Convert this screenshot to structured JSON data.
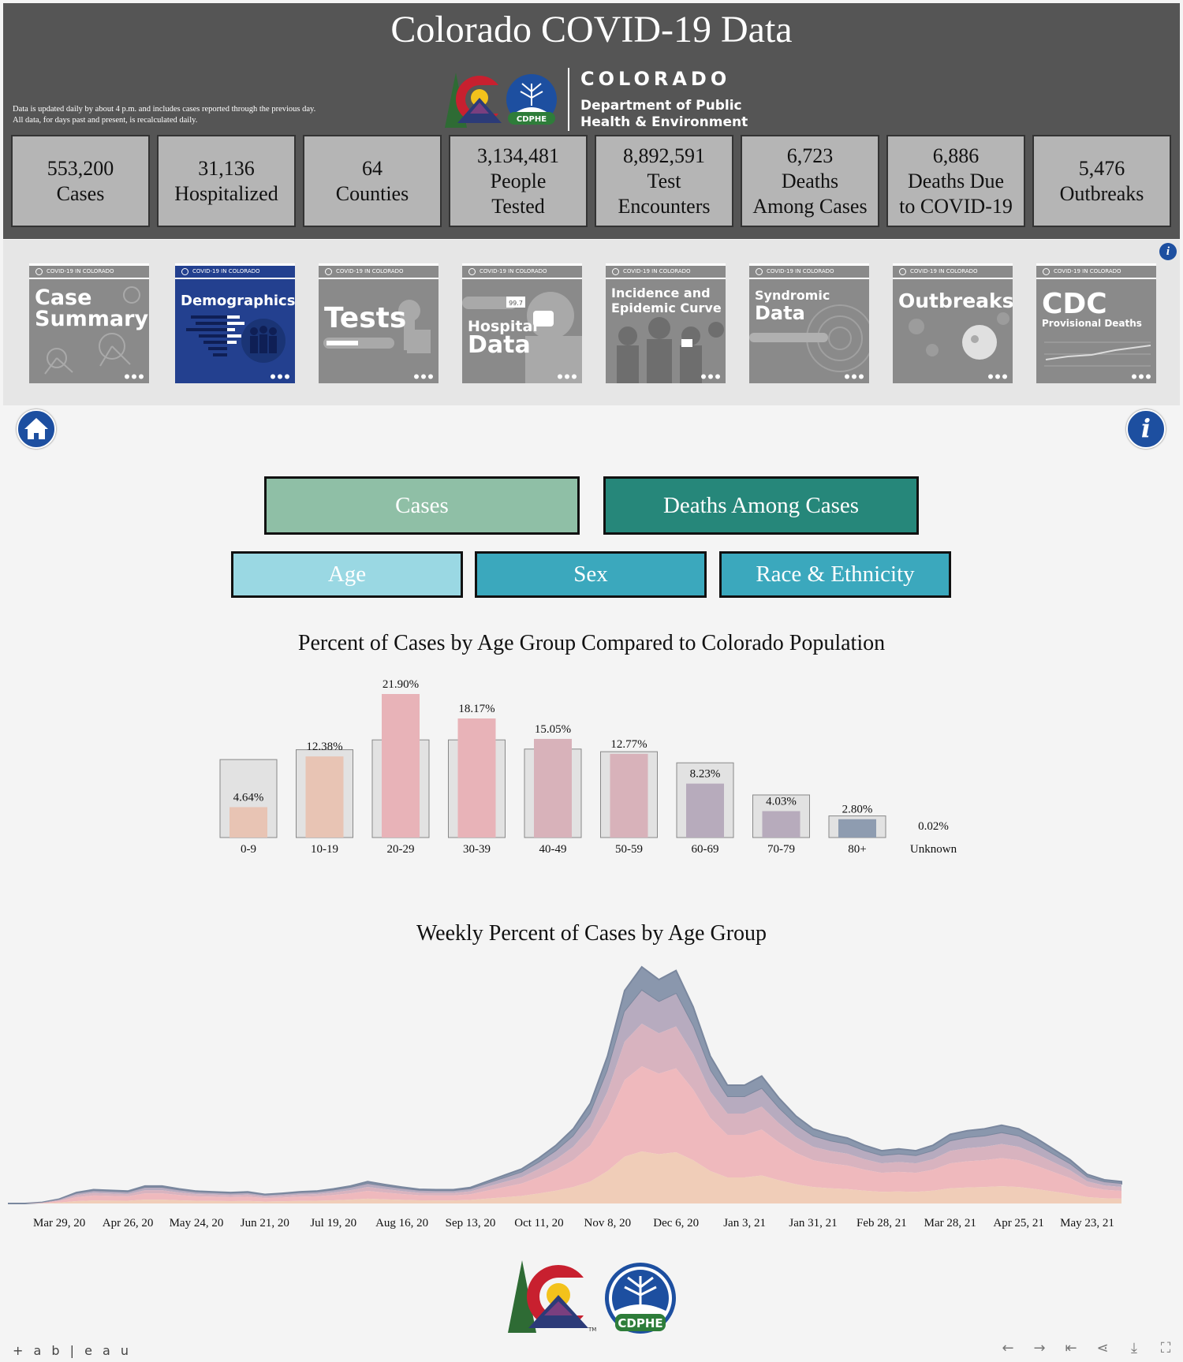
{
  "header": {
    "title": "Colorado COVID-19 Data",
    "note_line1": "Data is updated daily by about 4 p.m. and includes cases reported through the previous day.",
    "note_line2": "All data, for days past and present, is recalculated daily.",
    "logo_state": "COLORADO",
    "logo_dept1": "Department of Public",
    "logo_dept2": "Health & Environment",
    "logo_badge": "CDPHE",
    "tm": "TM"
  },
  "stats": [
    {
      "line1": "553,200",
      "line2": "Cases",
      "line3": ""
    },
    {
      "line1": "31,136",
      "line2": "Hospitalized",
      "line3": ""
    },
    {
      "line1": "64",
      "line2": "Counties",
      "line3": ""
    },
    {
      "line1": "3,134,481",
      "line2": "People",
      "line3": "Tested"
    },
    {
      "line1": "8,892,591",
      "line2": "Test",
      "line3": "Encounters"
    },
    {
      "line1": "6,723",
      "line2": "Deaths",
      "line3": "Among Cases"
    },
    {
      "line1": "6,886",
      "line2": "Deaths Due",
      "line3": "to COVID-19"
    },
    {
      "line1": "5,476",
      "line2": "Outbreaks",
      "line3": ""
    }
  ],
  "nav_tiles": [
    {
      "banner": "COVID-19 IN COLORADO",
      "label1": "Case",
      "label2": "Summary"
    },
    {
      "banner": "COVID-19 IN COLORADO",
      "label1": "Demographics",
      "label2": ""
    },
    {
      "banner": "COVID-19 IN COLORADO",
      "label1": "Tests",
      "label2": ""
    },
    {
      "banner": "COVID-19 IN COLORADO",
      "label1": "Hospital",
      "label2": "Data"
    },
    {
      "banner": "COVID-19 IN COLORADO",
      "label1": "Incidence and",
      "label2": "Epidemic Curve"
    },
    {
      "banner": "COVID-19 IN COLORADO",
      "label1": "Syndromic",
      "label2": "Data"
    },
    {
      "banner": "COVID-19 IN COLORADO",
      "label1": "Outbreaks",
      "label2": ""
    },
    {
      "banner": "COVID-19 IN COLORADO",
      "label1": "CDC",
      "label2": "Provisional Deaths"
    }
  ],
  "hospital_thermo": "99.7",
  "toggles": {
    "cases": "Cases",
    "deaths": "Deaths Among Cases"
  },
  "subtoggles": {
    "age": "Age",
    "sex": "Sex",
    "race": "Race & Ethnicity"
  },
  "colors": {
    "header_bg": "#555555",
    "cases_toggle": "#8fbfa6",
    "deaths_toggle": "#26877a",
    "age_toggle": "#9ad8e3",
    "sex_toggle": "#3ba8bd",
    "race_toggle": "#3ba8bd",
    "info_blue": "#1d4fa0"
  },
  "chart_data": [
    {
      "type": "bar",
      "title": "Percent of Cases by Age Group Compared to Colorado Population",
      "categories": [
        "0-9",
        "10-19",
        "20-29",
        "30-39",
        "40-49",
        "50-59",
        "60-69",
        "70-79",
        "80+",
        "Unknown"
      ],
      "series": [
        {
          "values": [
            4.64,
            12.38,
            21.9,
            18.17,
            15.05,
            12.77,
            8.23,
            4.03,
            2.8,
            0.02
          ],
          "labels": [
            "4.64%",
            "12.38%",
            "21.90%",
            "18.17%",
            "15.05%",
            "12.77%",
            "8.23%",
            "4.03%",
            "2.80%",
            "0.02%"
          ],
          "colors": [
            "#e8c4b4",
            "#e8c4b4",
            "#e8b3b8",
            "#e8b3b8",
            "#d8b2ba",
            "#d8b2ba",
            "#b7abbc",
            "#b7abbc",
            "#8e9cb0",
            "#8e9cb0"
          ]
        },
        {
          "values": [
            11.9,
            13.4,
            14.9,
            14.9,
            13.5,
            13.1,
            11.4,
            6.5,
            3.3,
            0
          ]
        }
      ],
      "ylim": [
        0,
        24
      ]
    },
    {
      "type": "area",
      "title": "Weekly Percent of Cases by Age Group",
      "x_ticks": [
        "Mar 29, 20",
        "Apr 26, 20",
        "May 24, 20",
        "Jun 21, 20",
        "Jul 19, 20",
        "Aug 16, 20",
        "Sep 13, 20",
        "Oct 11, 20",
        "Nov 8, 20",
        "Dec 6, 20",
        "Jan 3, 21",
        "Jan 31, 21",
        "Feb 28, 21",
        "Mar 28, 21",
        "Apr 25, 21",
        "May 23, 21"
      ],
      "x_weeks": [
        3,
        7,
        11,
        15,
        19,
        23,
        27,
        31,
        35,
        39,
        43,
        47,
        51,
        55,
        59,
        63
      ],
      "series_colors": [
        "#f0cdb8",
        "#efb9bd",
        "#d8b3bf",
        "#b7abbf",
        "#8a97ad"
      ],
      "totals": [
        0,
        0,
        0.3,
        1.2,
        3.0,
        3.8,
        3.6,
        3.4,
        4.8,
        4.8,
        4.0,
        3.4,
        3.2,
        3.0,
        3.2,
        2.5,
        2.8,
        3.2,
        3.4,
        4.0,
        4.8,
        6.0,
        5.2,
        4.5,
        3.9,
        3.8,
        3.8,
        4.4,
        6.1,
        7.8,
        9.5,
        12.5,
        16.0,
        20.5,
        27.5,
        40.5,
        58.5,
        65.0,
        61.5,
        64.0,
        54.0,
        40.5,
        32.5,
        32.5,
        35.0,
        29.0,
        24.0,
        20.5,
        19.0,
        18.0,
        16.0,
        14.5,
        15.0,
        14.5,
        16.0,
        19.0,
        20.0,
        20.5,
        21.5,
        20.5,
        18.0,
        15.0,
        12.0,
        8.0,
        6.5,
        6.0
      ],
      "shares": [
        0.22,
        0.36,
        0.18,
        0.14,
        0.1
      ]
    }
  ],
  "footer": {
    "badge": "CDPHE",
    "tm": "TM",
    "tableau": "+ a b | e a u"
  }
}
